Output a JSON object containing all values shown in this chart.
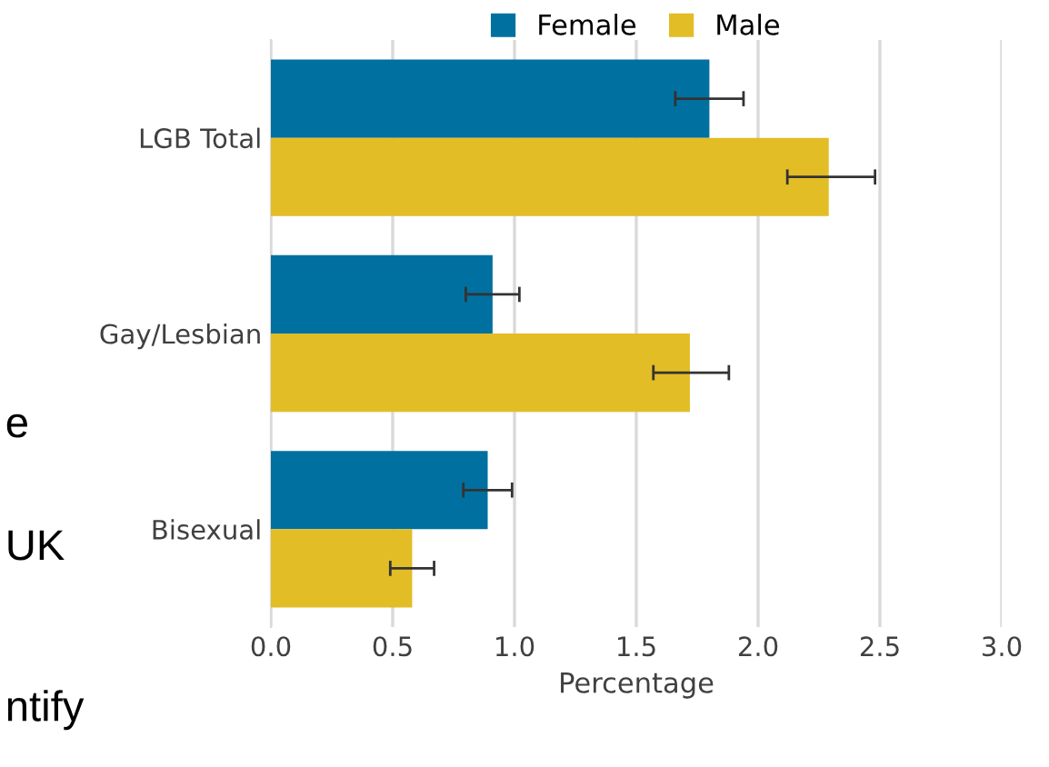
{
  "chart_data": {
    "type": "bar",
    "orientation": "horizontal",
    "xlabel": "Percentage",
    "categories": [
      "LGB Total",
      "Gay/Lesbian",
      "Bisexual"
    ],
    "series": [
      {
        "name": "Female",
        "color": "#0070a0",
        "values": [
          1.8,
          0.91,
          0.89
        ],
        "errors": [
          [
            1.66,
            1.94
          ],
          [
            0.8,
            1.02
          ],
          [
            0.79,
            0.99
          ]
        ]
      },
      {
        "name": "Male",
        "color": "#e2bd25",
        "values": [
          2.29,
          1.72,
          0.58
        ],
        "errors": [
          [
            2.12,
            2.48
          ],
          [
            1.57,
            1.88
          ],
          [
            0.49,
            0.67
          ]
        ]
      }
    ],
    "xlim": [
      0,
      3.0
    ],
    "xticks": [
      {
        "value": 0,
        "label": "0.0"
      },
      0.5,
      {
        "value": 1,
        "label": "1.0"
      },
      1.5,
      {
        "value": 2,
        "label": "2.0"
      },
      2.5,
      {
        "value": 3,
        "label": "3.0"
      }
    ],
    "grid": "x",
    "legend": "top",
    "annotations": [
      "e",
      "UK",
      "ntify"
    ]
  }
}
